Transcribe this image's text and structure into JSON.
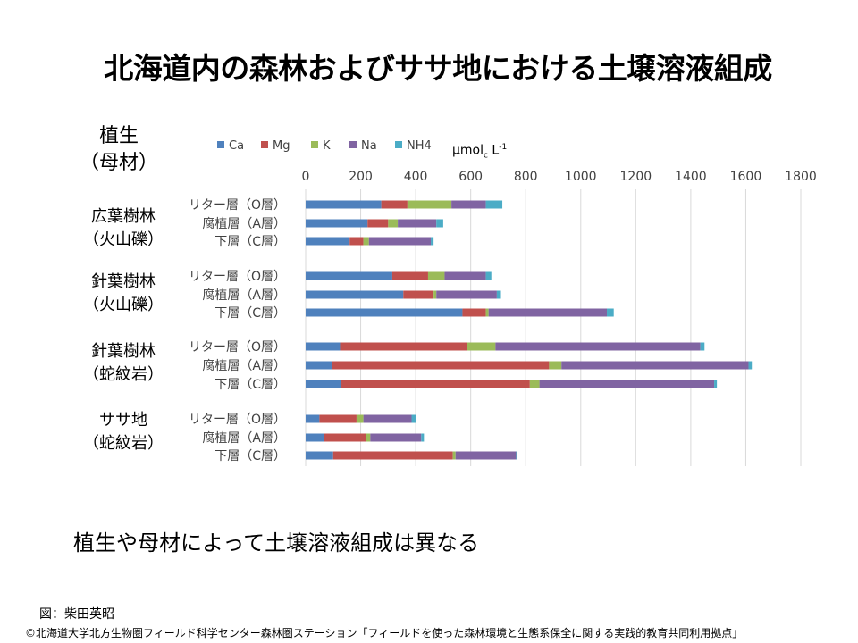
{
  "slide": {
    "title": "北海道内の森林およびササ地における土壌溶液組成",
    "veg_header_line1": "植生",
    "veg_header_line2": "（母材）",
    "unit_main": "μmol",
    "unit_sub": "c",
    "unit_tail": " L",
    "unit_sup": "-1",
    "conclusion": "植生や母材によって土壌溶液組成は異なる",
    "figure_credit": "図：柴田英昭",
    "copyright": "©北海道大学北方生物圏フィールド科学センター森林圏ステーション「フィールドを使った森林環境と生態系保全に関する実践的教育共同利用拠点」"
  },
  "groups": [
    {
      "line1": "広葉樹林",
      "line2": "（火山礫）"
    },
    {
      "line1": "針葉樹林",
      "line2": "（火山礫）"
    },
    {
      "line1": "針葉樹林",
      "line2": "（蛇紋岩）"
    },
    {
      "line1": "ササ地",
      "line2": "（蛇紋岩）"
    }
  ],
  "chart_data": {
    "type": "bar",
    "orientation": "horizontal",
    "stacked": true,
    "xlim": [
      0,
      1800
    ],
    "x_ticks": [
      "0",
      "200",
      "400",
      "600",
      "800",
      "1000",
      "1200",
      "1400",
      "1600",
      "1800"
    ],
    "grid": "vertical",
    "legend_position": "top",
    "categories": [
      "リター層（O層）",
      "腐植層（A層）",
      "下層（C層）",
      "リター層（O層）",
      "腐植層（A層）",
      "下層（C層）",
      "リター層（O層）",
      "腐植層（A層）",
      "下層（C層）",
      "リター層（O層）",
      "腐植層（A層）",
      "下層（C層）"
    ],
    "series": [
      {
        "name": "Ca",
        "color": "#4f81bd",
        "values": [
          275,
          225,
          160,
          315,
          355,
          570,
          125,
          95,
          130,
          50,
          65,
          100
        ]
      },
      {
        "name": "Mg",
        "color": "#c0504d",
        "values": [
          95,
          75,
          50,
          130,
          110,
          85,
          460,
          790,
          685,
          135,
          155,
          435
        ]
      },
      {
        "name": "K",
        "color": "#9bbb59",
        "values": [
          160,
          35,
          20,
          60,
          10,
          10,
          105,
          45,
          35,
          25,
          15,
          10
        ]
      },
      {
        "name": "Na",
        "color": "#8064a2",
        "values": [
          125,
          140,
          225,
          150,
          220,
          430,
          745,
          680,
          635,
          175,
          185,
          220
        ]
      },
      {
        "name": "NH4",
        "color": "#4bacc6",
        "values": [
          60,
          25,
          10,
          20,
          15,
          25,
          15,
          12,
          10,
          15,
          10,
          5
        ]
      }
    ]
  }
}
